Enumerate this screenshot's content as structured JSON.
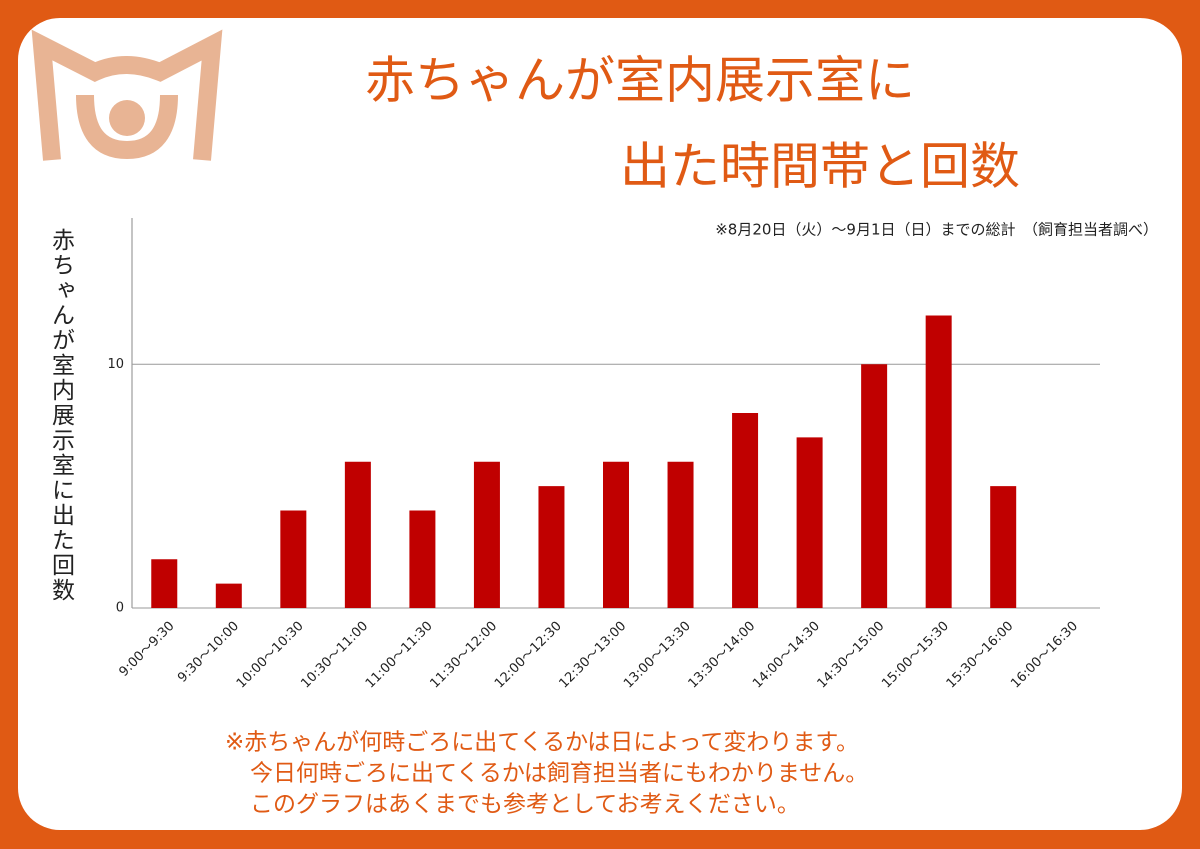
{
  "chart_data": {
    "type": "bar",
    "title": [
      "赤ちゃんが室内展示室に",
      "出た時間帯と回数"
    ],
    "subtitle": "※8月20日（火）～9月1日（日）までの総計　（飼育担当者調べ）",
    "y_label": "赤ちゃんが室内展示室に出た回数",
    "categories": [
      "9:00～9:30",
      "9:30～10:00",
      "10:00～10:30",
      "10:30～11:00",
      "11:00～11:30",
      "11:30～12:00",
      "12:00～12:30",
      "12:30～13:00",
      "13:00～13:30",
      "13:30～14:00",
      "14:00～14:30",
      "14:30～15:00",
      "15:00～15:30",
      "15:30～16:00",
      "16:00～16:30"
    ],
    "values": [
      2,
      1,
      4,
      6,
      4,
      6,
      5,
      6,
      6,
      8,
      7,
      10,
      12,
      5,
      0
    ],
    "color": "#c00000",
    "ylim": [
      0,
      16
    ],
    "yticks": [
      0,
      10
    ],
    "grid": true,
    "notes": [
      "※赤ちゃんが何時ごろに出てくるかは日によって変わります。",
      "今日何時ごろに出てくるかは飼育担当者にもわかりません。",
      "このグラフはあくまでも参考としてお考えください。"
    ]
  }
}
